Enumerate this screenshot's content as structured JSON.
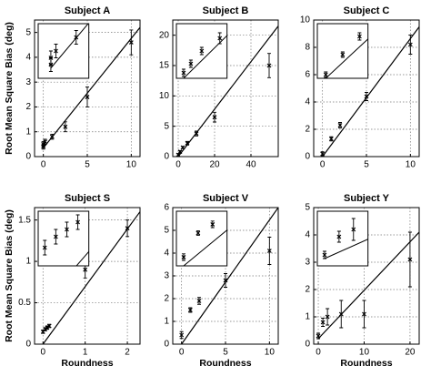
{
  "chart_data": [
    {
      "type": "scatter",
      "title": "Subject A",
      "y_label": "Root Mean Square Bias (deg)",
      "x": [
        0,
        0,
        0.2,
        1,
        2.5,
        5,
        10
      ],
      "values": [
        0.5,
        0.4,
        0.6,
        0.8,
        1.2,
        2.4,
        4.6
      ],
      "errors": [
        0.1,
        0.1,
        0.1,
        0.1,
        0.2,
        0.4,
        0.5
      ],
      "fit": {
        "x": [
          0,
          11
        ],
        "values": [
          0.35,
          5.2
        ]
      },
      "xlim": [
        -1,
        11
      ],
      "ylim": [
        0,
        5.5
      ],
      "xticks": [
        0,
        5,
        10
      ],
      "yticks": [
        0,
        1,
        2,
        3,
        4,
        5
      ],
      "inset_xlim": [
        -0.5,
        1.5
      ],
      "inset_ylim": [
        0.2,
        1
      ],
      "grid": true,
      "color": "#000000"
    },
    {
      "type": "scatter",
      "title": "Subject B",
      "x": [
        0,
        1,
        2.5,
        5,
        10,
        20,
        50
      ],
      "values": [
        0.3,
        0.8,
        1.5,
        2.2,
        3.8,
        6.5,
        15
      ],
      "errors": [
        0.2,
        0.2,
        0.2,
        0.3,
        0.4,
        0.8,
        2
      ],
      "fit": {
        "x": [
          0,
          55
        ],
        "values": [
          0,
          21.5
        ]
      },
      "xlim": [
        -3,
        55
      ],
      "ylim": [
        0,
        22.5
      ],
      "xticks": [
        0,
        20,
        40
      ],
      "yticks": [
        0,
        5,
        10,
        15,
        20
      ],
      "inset_xlim": [
        -1,
        6
      ],
      "inset_ylim": [
        0,
        3
      ],
      "grid": true,
      "color": "#000000"
    },
    {
      "type": "scatter",
      "title": "Subject C",
      "x": [
        0,
        1,
        2,
        5,
        10
      ],
      "values": [
        0.2,
        1.3,
        2.3,
        4.4,
        8.2
      ],
      "errors": [
        0.15,
        0.15,
        0.2,
        0.3,
        0.7
      ],
      "fit": {
        "x": [
          0,
          11
        ],
        "values": [
          0,
          9.5
        ]
      },
      "xlim": [
        -1,
        11
      ],
      "ylim": [
        0,
        10
      ],
      "xticks": [
        0,
        5,
        10
      ],
      "yticks": [
        0,
        2,
        4,
        6,
        8,
        10
      ],
      "inset_xlim": [
        -0.5,
        2.5
      ],
      "inset_ylim": [
        0,
        3
      ],
      "grid": true,
      "color": "#000000"
    },
    {
      "type": "scatter",
      "title": "Subject S",
      "x_label": "Roundness",
      "y_label": "Root Mean Square Bias (deg)",
      "x": [
        0,
        0.05,
        0.1,
        0.15,
        1,
        2
      ],
      "values": [
        0.15,
        0.18,
        0.2,
        0.22,
        0.9,
        1.4
      ],
      "errors": [
        0.02,
        0.02,
        0.02,
        0.02,
        0.1,
        0.1
      ],
      "fit": {
        "x": [
          0,
          2.3
        ],
        "values": [
          0,
          1.6
        ]
      },
      "xlim": [
        -0.2,
        2.3
      ],
      "ylim": [
        0,
        1.65
      ],
      "xticks": [
        0,
        1,
        2
      ],
      "yticks": [
        0,
        0.5,
        1,
        1.5
      ],
      "inset_xlim": [
        -0.03,
        0.2
      ],
      "inset_ylim": [
        0.1,
        0.25
      ],
      "grid": true,
      "color": "#000000"
    },
    {
      "type": "scatter",
      "title": "Subject V",
      "x_label": "Roundness",
      "x": [
        0,
        1,
        2,
        5,
        10
      ],
      "values": [
        0.4,
        1.5,
        1.9,
        2.8,
        4.1
      ],
      "errors": [
        0.15,
        0.1,
        0.15,
        0.3,
        0.6
      ],
      "fit": {
        "x": [
          0,
          11
        ],
        "values": [
          0,
          6
        ]
      },
      "xlim": [
        -1,
        11
      ],
      "ylim": [
        0,
        6
      ],
      "xticks": [
        0,
        5,
        10
      ],
      "yticks": [
        0,
        1,
        2,
        3,
        4,
        5,
        6
      ],
      "inset_xlim": [
        -0.5,
        3
      ],
      "inset_ylim": [
        0,
        2.5
      ],
      "grid": true,
      "color": "#000000"
    },
    {
      "type": "scatter",
      "title": "Subject Y",
      "x_label": "Roundness",
      "x": [
        0,
        1,
        2,
        5,
        10,
        20
      ],
      "values": [
        0.3,
        0.8,
        1.0,
        1.1,
        1.1,
        3.1
      ],
      "errors": [
        0.1,
        0.15,
        0.3,
        0.5,
        0.5,
        1
      ],
      "fit": {
        "x": [
          0,
          22
        ],
        "values": [
          0.2,
          4.1
        ]
      },
      "xlim": [
        -1,
        22
      ],
      "ylim": [
        0,
        5
      ],
      "xticks": [
        0,
        10,
        20
      ],
      "yticks": [
        0,
        1,
        2,
        3,
        4,
        5
      ],
      "inset_xlim": [
        -0.5,
        3
      ],
      "inset_ylim": [
        0,
        1.5
      ],
      "grid": true,
      "color": "#000000"
    }
  ]
}
